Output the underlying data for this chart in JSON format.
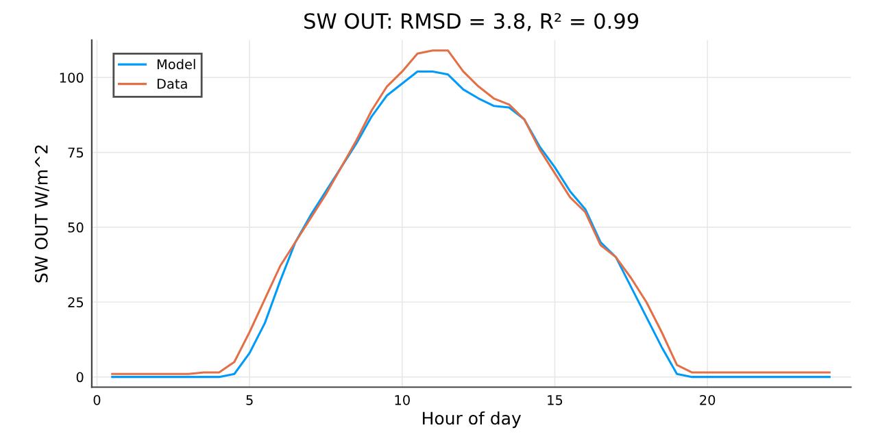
{
  "chart_data": {
    "type": "line",
    "title": "SW OUT: RMSD = 3.8, R² = 0.99",
    "xlabel": "Hour of day",
    "ylabel": "SW OUT W/m^2",
    "x": [
      0.5,
      1,
      1.5,
      2,
      2.5,
      3,
      3.5,
      4,
      4.5,
      5,
      5.5,
      6,
      6.5,
      7,
      7.5,
      8,
      8.5,
      9,
      9.5,
      10,
      10.5,
      11,
      11.5,
      12,
      12.5,
      13,
      13.5,
      14,
      14.5,
      15,
      15.5,
      16,
      16.5,
      17,
      17.5,
      18,
      18.5,
      19,
      19.5,
      20,
      20.5,
      21,
      21.5,
      22,
      22.5,
      23,
      23.5,
      24
    ],
    "series": [
      {
        "name": "Model",
        "color": "#009af9",
        "values": [
          0,
          0,
          0,
          0,
          0,
          0,
          0,
          0,
          1,
          8,
          18,
          32,
          45,
          54,
          62,
          70,
          78,
          87,
          94,
          98,
          102,
          102,
          101,
          96,
          93,
          90.5,
          90,
          86,
          77,
          70,
          62,
          56,
          45,
          40,
          30,
          20,
          10,
          1,
          0,
          0,
          0,
          0,
          0,
          0,
          0,
          0,
          0,
          0
        ]
      },
      {
        "name": "Data",
        "color": "#e26f46",
        "values": [
          1,
          1,
          1,
          1,
          1,
          1,
          1.5,
          1.5,
          5,
          15,
          26,
          37,
          45,
          53,
          61,
          70,
          79,
          89,
          97,
          102,
          108,
          109,
          109,
          102,
          97,
          93,
          91,
          86,
          76,
          68,
          60,
          55,
          44,
          40,
          33,
          25,
          15,
          4,
          1.5,
          1.5,
          1.5,
          1.5,
          1.5,
          1.5,
          1.5,
          1.5,
          1.5,
          1.5
        ]
      }
    ],
    "xlim": [
      -0.17,
      24.7
    ],
    "ylim": [
      -3.4,
      112.5
    ],
    "xticks": [
      0,
      5,
      10,
      15,
      20
    ],
    "yticks": [
      0,
      25,
      50,
      75,
      100
    ],
    "grid": true,
    "legend": "top left"
  }
}
